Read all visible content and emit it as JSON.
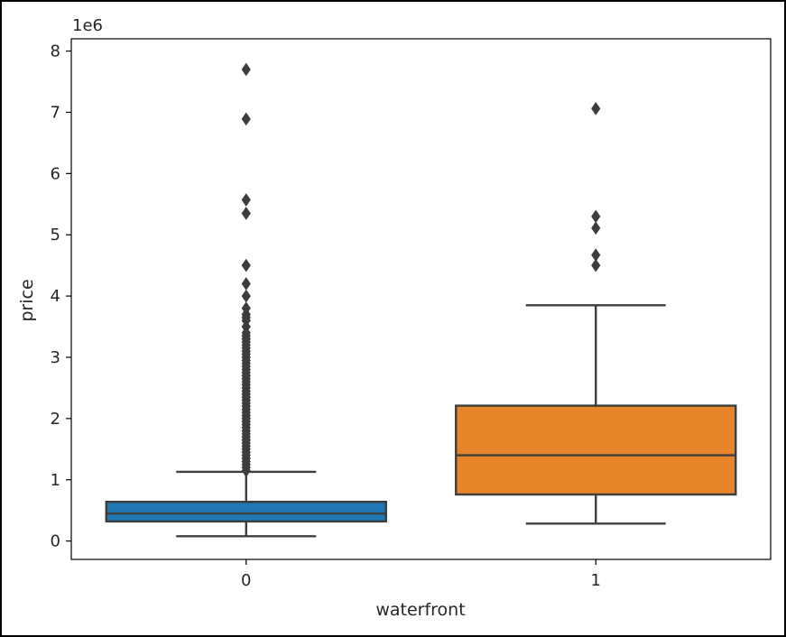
{
  "chart_data": {
    "type": "box",
    "xlabel": "waterfront",
    "ylabel": "price",
    "y_offset_label": "1e6",
    "y_scale_factor": 1000000,
    "ylim": [
      -300000,
      8200000
    ],
    "yticks": [
      0,
      1,
      2,
      3,
      4,
      5,
      6,
      7,
      8
    ],
    "grid": false,
    "categories": [
      "0",
      "1"
    ],
    "boxes": [
      {
        "category": "0",
        "color": "#1f77b4",
        "whisker_low": 78000,
        "q1": 320000,
        "median": 450000,
        "q3": 640000,
        "whisker_high": 1130000,
        "outliers": [
          7700000,
          6890000,
          5570000,
          5350000,
          4500000,
          4200000,
          4000000,
          3800000,
          3700000,
          3650000,
          3600000,
          3500000,
          3400000,
          3350000,
          3300000,
          3250000,
          3200000,
          3150000,
          3100000,
          3050000,
          3000000,
          2950000,
          2900000,
          2850000,
          2800000,
          2750000,
          2700000,
          2650000,
          2600000,
          2550000,
          2500000,
          2450000,
          2400000,
          2350000,
          2300000,
          2250000,
          2200000,
          2150000,
          2100000,
          2050000,
          2000000,
          1950000,
          1900000,
          1850000,
          1800000,
          1750000,
          1700000,
          1650000,
          1600000,
          1550000,
          1500000,
          1450000,
          1400000,
          1350000,
          1300000,
          1250000,
          1200000,
          1150000
        ]
      },
      {
        "category": "1",
        "color": "#e8842a",
        "whisker_low": 285000,
        "q1": 760000,
        "median": 1400000,
        "q3": 2210000,
        "whisker_high": 3850000,
        "outliers": [
          7060000,
          5300000,
          5110000,
          4670000,
          4500000
        ]
      }
    ]
  }
}
